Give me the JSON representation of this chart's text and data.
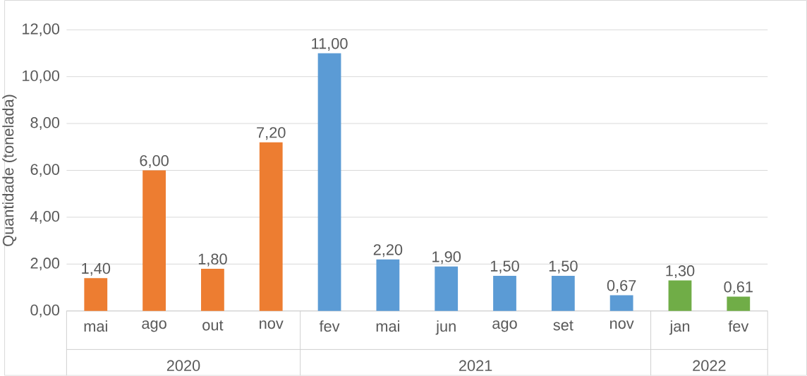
{
  "chart_data": {
    "type": "bar",
    "ylabel": "Quantidade (tonelada)",
    "categories": [
      "mai",
      "ago",
      "out",
      "nov",
      "fev",
      "mai",
      "jun",
      "ago",
      "set",
      "nov",
      "jan",
      "fev"
    ],
    "values": [
      1.4,
      6.0,
      1.8,
      7.2,
      11.0,
      2.2,
      1.9,
      1.5,
      1.5,
      0.67,
      1.3,
      0.61
    ],
    "value_labels": [
      "1,40",
      "6,00",
      "1,80",
      "7,20",
      "11,00",
      "2,20",
      "1,90",
      "1,50",
      "1,50",
      "0,67",
      "1,30",
      "0,61"
    ],
    "colors": [
      "#ed7d31",
      "#ed7d31",
      "#ed7d31",
      "#ed7d31",
      "#5b9bd5",
      "#5b9bd5",
      "#5b9bd5",
      "#5b9bd5",
      "#5b9bd5",
      "#5b9bd5",
      "#70ad47",
      "#70ad47"
    ],
    "annotations": [
      "2020",
      "2021",
      "2022"
    ],
    "ylim": [
      0,
      12
    ],
    "yticks": [
      {
        "value": 0,
        "label": "0,00"
      },
      {
        "value": 2,
        "label": "2,00"
      },
      {
        "value": 4,
        "label": "4,00"
      },
      {
        "value": 6,
        "label": "6,00"
      },
      {
        "value": 8,
        "label": "8,00"
      },
      {
        "value": 10,
        "label": "10,00"
      },
      {
        "value": 12,
        "label": "12,00"
      }
    ],
    "grid": "y"
  }
}
